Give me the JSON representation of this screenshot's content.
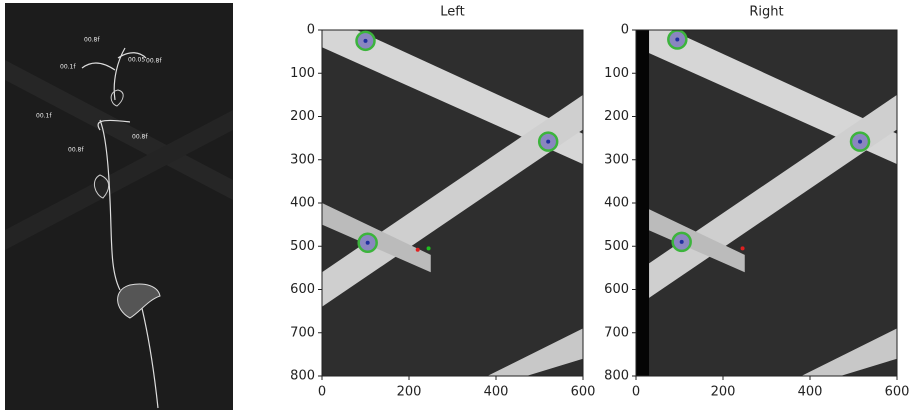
{
  "photo_labels": [
    "00.8f",
    "00.1f",
    "00.05",
    "00.8f",
    "00.1f",
    "00.8f",
    "00.8f"
  ],
  "chart_data": [
    {
      "type": "scatter",
      "title": "Left",
      "xlim": [
        0,
        600
      ],
      "ylim": [
        800,
        0
      ],
      "xticks": [
        0,
        200,
        400,
        600
      ],
      "yticks": [
        0,
        100,
        200,
        300,
        400,
        500,
        600,
        700,
        800
      ],
      "series": [
        {
          "marker": "ring",
          "color": "#3cb43c",
          "x": [
            100,
            520,
            105
          ],
          "values": [
            25,
            258,
            492
          ]
        },
        {
          "marker": "dot",
          "color": "#e02020",
          "x": [
            220
          ],
          "values": [
            508
          ]
        },
        {
          "marker": "dot",
          "color": "#20c020",
          "x": [
            245
          ],
          "values": [
            505
          ]
        }
      ]
    },
    {
      "type": "scatter",
      "title": "Right",
      "xlim": [
        0,
        600
      ],
      "ylim": [
        800,
        0
      ],
      "xticks": [
        0,
        200,
        400,
        600
      ],
      "yticks": [
        0,
        100,
        200,
        300,
        400,
        500,
        600,
        700,
        800
      ],
      "series": [
        {
          "marker": "ring",
          "color": "#3cb43c",
          "x": [
            95,
            515,
            105
          ],
          "values": [
            22,
            258,
            490
          ]
        },
        {
          "marker": "dot",
          "color": "#e02020",
          "x": [
            245
          ],
          "values": [
            505
          ]
        }
      ]
    }
  ]
}
